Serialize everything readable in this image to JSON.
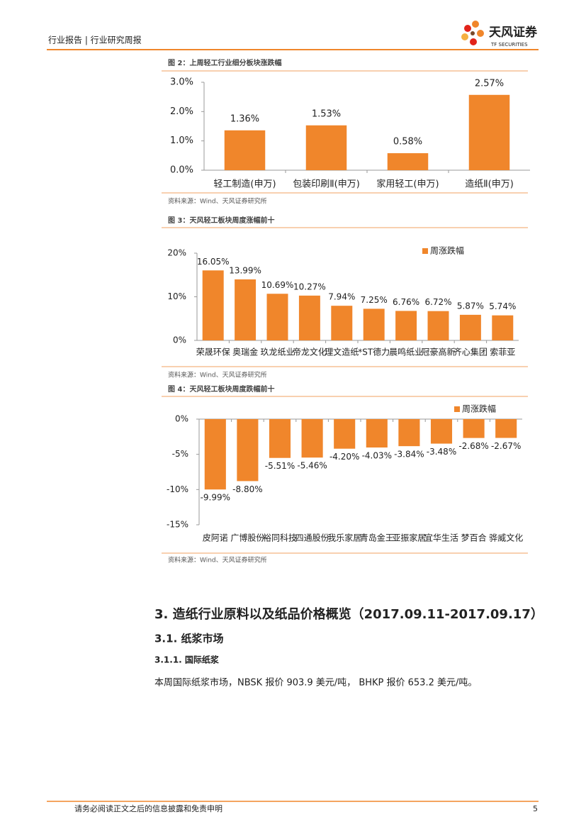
{
  "header": {
    "left": "行业报告 | 行业研究周报",
    "logo_name": "天风证券",
    "logo_sub": "TF SECURITIES"
  },
  "chart_data": [
    {
      "type": "bar",
      "title": "图 2：上周轻工行业细分板块涨跌幅",
      "source": "资料来源：Wind、天风证券研究所",
      "categories": [
        "轻工制造(申万)",
        "包装印刷Ⅱ(申万)",
        "家用轻工(申万)",
        "造纸Ⅱ(申万)"
      ],
      "values": [
        1.36,
        1.53,
        0.58,
        2.57
      ],
      "value_labels": [
        "1.36%",
        "1.53%",
        "0.58%",
        "2.57%"
      ],
      "color": "#F0862B",
      "ylim": [
        0,
        3
      ],
      "yticks": [
        {
          "value": 0,
          "label": "0.0%"
        },
        {
          "value": 1,
          "label": "1.0%"
        },
        {
          "value": 2,
          "label": "2.0%"
        },
        {
          "value": 3,
          "label": "3.0%"
        }
      ]
    },
    {
      "type": "bar",
      "title": "图 3：天风轻工板块周度涨幅前十",
      "source": "资料来源：Wind、天风证券研究所",
      "categories": [
        "荣晟环保",
        "奥瑞金",
        "玖龙纸业",
        "帝龙文化",
        "理文造纸",
        "*ST德力",
        "晨鸣纸业",
        "冠豪高新",
        "齐心集团",
        "索菲亚"
      ],
      "series": [
        {
          "name": "周涨跌幅",
          "color": "#F0862B",
          "values": [
            16.05,
            13.99,
            10.69,
            10.27,
            7.94,
            7.25,
            6.76,
            6.72,
            5.87,
            5.74
          ],
          "value_labels": [
            "16.05%",
            "13.99%",
            "10.69%",
            "10.27%",
            "7.94%",
            "7.25%",
            "6.76%",
            "6.72%",
            "5.87%",
            "5.74%"
          ]
        }
      ],
      "legend": "top-right",
      "ylim": [
        0,
        20
      ],
      "yticks": [
        {
          "value": 0,
          "label": "0%"
        },
        {
          "value": 10,
          "label": "10%"
        },
        {
          "value": 20,
          "label": "20%"
        }
      ]
    },
    {
      "type": "bar",
      "title": "图 4：天风轻工板块周度跌幅前十",
      "source": "资料来源：Wind、天风证券研究所",
      "categories": [
        "皮阿诺",
        "广博股份",
        "裕同科技",
        "四通股份",
        "我乐家居",
        "青岛金王",
        "亚振家居",
        "宜华生活",
        "梦百合",
        "骅威文化"
      ],
      "series": [
        {
          "name": "周涨跌幅",
          "color": "#F0862B",
          "values": [
            -9.99,
            -8.8,
            -5.51,
            -5.46,
            -4.2,
            -4.03,
            -3.84,
            -3.48,
            -2.68,
            -2.67
          ],
          "value_labels": [
            "-9.99%",
            "-8.80%",
            "-5.51%",
            "-5.46%",
            "-4.20%",
            "-4.03%",
            "-3.84%",
            "-3.48%",
            "-2.68%",
            "-2.67%"
          ]
        }
      ],
      "legend": "top-right",
      "ylim": [
        -15,
        0
      ],
      "yticks": [
        {
          "value": 0,
          "label": "0%"
        },
        {
          "value": -5,
          "label": "-5%"
        },
        {
          "value": -10,
          "label": "-10%"
        },
        {
          "value": -15,
          "label": "-15%"
        }
      ]
    }
  ],
  "section": {
    "heading": "3. 造纸行业原料以及纸品价格概览（2017.09.11-2017.09.17）",
    "subheading": "3.1. 纸浆市场",
    "subsubheading": "3.1.1. 国际纸浆",
    "paragraph": "本周国际纸浆市场，NBSK 报价 903.9 美元/吨， BHKP 报价 653.2 美元/吨。"
  },
  "footer": {
    "disclaimer": "请务必阅读正文之后的信息披露和免责申明",
    "page": "5"
  }
}
